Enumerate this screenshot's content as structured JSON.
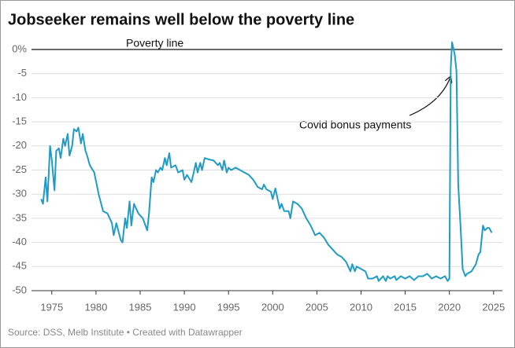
{
  "chart_data": {
    "type": "line",
    "title": "Jobseeker remains well below the poverty line",
    "annotations": [
      "Poverty line",
      "Covid bonus payments"
    ],
    "source": "Source: DSS, Melb Institute • Created with Datawrapper",
    "x": [
      1973.8,
      1974.0,
      1974.3,
      1974.5,
      1974.8,
      1975.0,
      1975.3,
      1975.5,
      1975.8,
      1976.0,
      1976.3,
      1976.5,
      1976.8,
      1977.0,
      1977.3,
      1977.5,
      1977.8,
      1978.0,
      1978.3,
      1978.5,
      1978.8,
      1979.0,
      1979.3,
      1979.8,
      1980.3,
      1980.8,
      1981.3,
      1981.8,
      1982.0,
      1982.3,
      1982.8,
      1983.0,
      1983.3,
      1983.5,
      1983.8,
      1984.0,
      1984.3,
      1984.8,
      1985.3,
      1985.8,
      1986.0,
      1986.3,
      1986.5,
      1986.8,
      1987.0,
      1987.3,
      1987.5,
      1987.8,
      1988.0,
      1988.3,
      1988.5,
      1989.0,
      1989.3,
      1989.8,
      1990.0,
      1990.3,
      1990.8,
      1991.0,
      1991.3,
      1991.5,
      1991.8,
      1992.0,
      1992.3,
      1992.8,
      1993.3,
      1993.8,
      1994.0,
      1994.3,
      1994.5,
      1994.8,
      1995.0,
      1995.3,
      1995.8,
      1996.3,
      1996.8,
      1997.3,
      1997.8,
      1998.3,
      1998.8,
      1999.0,
      1999.3,
      1999.8,
      2000.0,
      2000.3,
      2000.8,
      2001.0,
      2001.3,
      2001.8,
      2002.0,
      2002.3,
      2002.8,
      2003.3,
      2003.8,
      2004.3,
      2004.8,
      2005.3,
      2005.8,
      2006.3,
      2006.8,
      2007.3,
      2007.8,
      2008.3,
      2008.8,
      2009.0,
      2009.3,
      2009.5,
      2010.0,
      2010.5,
      2010.8,
      2011.3,
      2011.8,
      2012.0,
      2012.5,
      2012.8,
      2013.0,
      2013.3,
      2013.8,
      2014.0,
      2014.5,
      2015.0,
      2015.5,
      2016.0,
      2016.5,
      2017.0,
      2017.5,
      2018.0,
      2018.5,
      2019.0,
      2019.5,
      2019.8,
      2020.0,
      2020.15,
      2020.3,
      2020.6,
      2020.8,
      2021.0,
      2021.3,
      2021.5,
      2021.8,
      2022.0,
      2022.5,
      2023.0,
      2023.3,
      2023.5,
      2023.8,
      2024.0,
      2024.3,
      2024.5,
      2024.8
    ],
    "series": [
      {
        "color": "#1f9bc6",
        "values": [
          -31,
          -32,
          -26.5,
          -31.5,
          -20,
          -23,
          -29.2,
          -21,
          -20.5,
          -22.5,
          -18.5,
          -20,
          -17.5,
          -22,
          -20,
          -16.5,
          -17,
          -16.2,
          -19.5,
          -17.5,
          -21,
          -22,
          -24,
          -25.5,
          -30,
          -33.5,
          -34,
          -36,
          -38.5,
          -36,
          -39.5,
          -40,
          -35,
          -37,
          -31.5,
          -36.5,
          -32,
          -34,
          -35,
          -37.5,
          -34,
          -26.5,
          -27.5,
          -25,
          -25.5,
          -24.5,
          -25,
          -22.5,
          -24,
          -21.5,
          -24.5,
          -24,
          -25.5,
          -25,
          -27,
          -26,
          -27.5,
          -26,
          -23.5,
          -25.5,
          -23.5,
          -25,
          -22.5,
          -22.8,
          -23,
          -24,
          -23.5,
          -25,
          -23,
          -25.5,
          -24.5,
          -25,
          -24.5,
          -25,
          -25.5,
          -26,
          -27,
          -28.5,
          -29,
          -28,
          -29,
          -29.5,
          -31,
          -28.8,
          -33,
          -32,
          -33.5,
          -33.5,
          -35,
          -31.5,
          -32,
          -33,
          -35,
          -36.5,
          -38.5,
          -38,
          -39,
          -40.5,
          -41.5,
          -42.5,
          -43,
          -44,
          -46,
          -44.5,
          -46,
          -45,
          -45.5,
          -46,
          -47.5,
          -47.5,
          -47,
          -48,
          -47,
          -48,
          -47,
          -47.5,
          -47,
          -47.8,
          -47,
          -47.5,
          -47,
          -47.8,
          -47,
          -47,
          -46.5,
          -47.5,
          -47,
          -47.5,
          -47,
          -48,
          -47.5,
          -4,
          1.5,
          -1,
          -4.5,
          -28,
          -38,
          -45.5,
          -47,
          -46.5,
          -46,
          -44.5,
          -42.5,
          -42,
          -36.5,
          -37.5,
          -37,
          -37,
          -38
        ]
      }
    ],
    "xlim": [
      1972.7,
      2026
    ],
    "xticks": [
      1975,
      1980,
      1985,
      1990,
      1995,
      2000,
      2005,
      2010,
      2015,
      2020,
      2025
    ],
    "ylim": [
      -50,
      0
    ],
    "yticks": [
      {
        "value": 0,
        "label": "0%"
      },
      -5,
      -10,
      -15,
      -20,
      -25,
      -30,
      -35,
      -40,
      -45,
      -50
    ],
    "grid": true
  }
}
